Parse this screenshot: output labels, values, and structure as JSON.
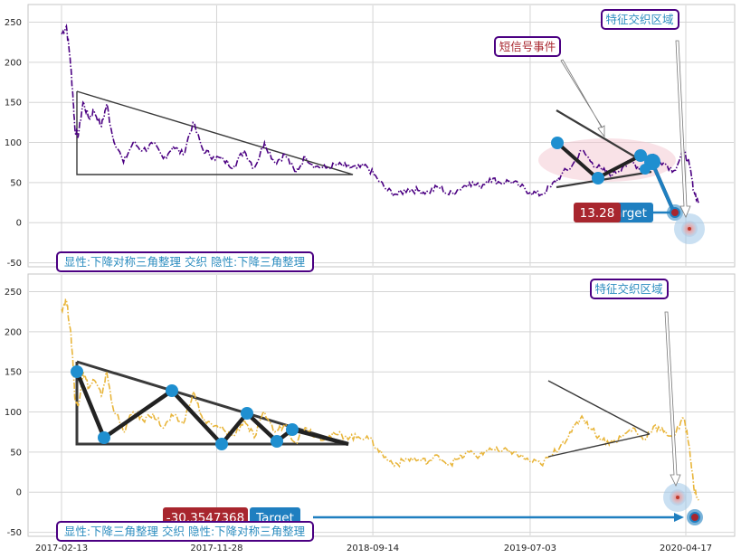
{
  "chart_data": [
    {
      "type": "line",
      "panel": "top",
      "series": [
        {
          "color": "#4b0082",
          "style": "dash-dot"
        }
      ],
      "x_ticks": [
        "2017-02-13",
        "2017-11-28",
        "2018-09-14",
        "2019-07-03",
        "2020-04-17"
      ],
      "y_ticks": [
        "-50",
        "0",
        "50",
        "100",
        "150",
        "200",
        "250"
      ],
      "ylim": [
        -55,
        272
      ],
      "grid": true,
      "points": [
        [
          "2017-02-13",
          235
        ],
        [
          "2017-02-22",
          245
        ],
        [
          "2017-03-01",
          205
        ],
        [
          "2017-03-06",
          160
        ],
        [
          "2017-03-10",
          115
        ],
        [
          "2017-03-16",
          108
        ],
        [
          "2017-03-25",
          150
        ],
        [
          "2017-04-05",
          130
        ],
        [
          "2017-04-14",
          140
        ],
        [
          "2017-04-28",
          120
        ],
        [
          "2017-05-08",
          148
        ],
        [
          "2017-05-18",
          110
        ],
        [
          "2017-06-08",
          75
        ],
        [
          "2017-06-26",
          100
        ],
        [
          "2017-07-14",
          90
        ],
        [
          "2017-08-02",
          98
        ],
        [
          "2017-08-21",
          80
        ],
        [
          "2017-09-08",
          95
        ],
        [
          "2017-09-27",
          85
        ],
        [
          "2017-10-15",
          125
        ],
        [
          "2017-11-03",
          90
        ],
        [
          "2017-11-22",
          82
        ],
        [
          "2017-12-11",
          78
        ],
        [
          "2017-12-30",
          70
        ],
        [
          "2018-01-18",
          90
        ],
        [
          "2018-02-06",
          68
        ],
        [
          "2018-02-25",
          100
        ],
        [
          "2018-03-16",
          75
        ],
        [
          "2018-04-04",
          85
        ],
        [
          "2018-04-23",
          62
        ],
        [
          "2018-05-12",
          82
        ],
        [
          "2018-05-31",
          70
        ],
        [
          "2018-06-19",
          68
        ],
        [
          "2018-07-08",
          72
        ],
        [
          "2018-07-27",
          70
        ],
        [
          "2018-08-15",
          68
        ],
        [
          "2018-09-03",
          70
        ],
        [
          "2018-09-22",
          55
        ],
        [
          "2018-10-11",
          40
        ],
        [
          "2018-10-30",
          35
        ],
        [
          "2018-11-18",
          42
        ],
        [
          "2018-12-07",
          40
        ],
        [
          "2018-12-26",
          38
        ],
        [
          "2019-01-14",
          45
        ],
        [
          "2019-02-02",
          35
        ],
        [
          "2019-02-21",
          42
        ],
        [
          "2019-03-12",
          50
        ],
        [
          "2019-03-31",
          45
        ],
        [
          "2019-04-19",
          55
        ],
        [
          "2019-05-08",
          50
        ],
        [
          "2019-05-27",
          52
        ],
        [
          "2019-06-15",
          45
        ],
        [
          "2019-07-04",
          38
        ],
        [
          "2019-07-23",
          35
        ],
        [
          "2019-08-11",
          45
        ],
        [
          "2019-08-30",
          60
        ],
        [
          "2019-09-18",
          70
        ],
        [
          "2019-10-07",
          90
        ],
        [
          "2019-10-26",
          75
        ],
        [
          "2019-11-14",
          65
        ],
        [
          "2019-12-03",
          60
        ],
        [
          "2019-12-22",
          70
        ],
        [
          "2020-01-10",
          75
        ],
        [
          "2020-01-29",
          65
        ],
        [
          "2020-02-17",
          85
        ],
        [
          "2020-03-07",
          75
        ],
        [
          "2020-03-26",
          65
        ],
        [
          "2020-04-14",
          90
        ],
        [
          "2020-04-24",
          70
        ],
        [
          "2020-05-02",
          40
        ],
        [
          "2020-05-11",
          25
        ]
      ],
      "legend_text": "显性:下降对称三角整理 交织 隐性:下降三角整理",
      "annotations": [
        {
          "id": "signal",
          "label": "短信号事件"
        },
        {
          "id": "feature",
          "label": "特征交织区域"
        }
      ],
      "target_badge": {
        "value": "13.28",
        "label": "Target",
        "y": 13.28
      }
    },
    {
      "type": "line",
      "panel": "bottom",
      "series": [
        {
          "color": "#e8b53a",
          "style": "dash-dot"
        }
      ],
      "x_ticks": [
        "2017-02-13",
        "2017-11-28",
        "2018-09-14",
        "2019-07-03",
        "2020-04-17"
      ],
      "y_ticks": [
        "-50",
        "0",
        "50",
        "100",
        "150",
        "200",
        "250"
      ],
      "ylim": [
        -55,
        272
      ],
      "grid": true,
      "points": [
        [
          "2017-02-13",
          228
        ],
        [
          "2017-02-22",
          240
        ],
        [
          "2017-03-01",
          205
        ],
        [
          "2017-03-06",
          165
        ],
        [
          "2017-03-10",
          115
        ],
        [
          "2017-03-16",
          108
        ],
        [
          "2017-03-25",
          150
        ],
        [
          "2017-04-05",
          130
        ],
        [
          "2017-04-14",
          140
        ],
        [
          "2017-04-28",
          120
        ],
        [
          "2017-05-08",
          150
        ],
        [
          "2017-05-18",
          110
        ],
        [
          "2017-06-08",
          75
        ],
        [
          "2017-06-26",
          100
        ],
        [
          "2017-07-14",
          90
        ],
        [
          "2017-08-02",
          98
        ],
        [
          "2017-08-21",
          80
        ],
        [
          "2017-09-08",
          95
        ],
        [
          "2017-09-27",
          85
        ],
        [
          "2017-10-15",
          125
        ],
        [
          "2017-11-03",
          90
        ],
        [
          "2017-11-22",
          82
        ],
        [
          "2017-12-11",
          78
        ],
        [
          "2017-12-30",
          70
        ],
        [
          "2018-01-18",
          90
        ],
        [
          "2018-02-06",
          68
        ],
        [
          "2018-02-25",
          100
        ],
        [
          "2018-03-16",
          75
        ],
        [
          "2018-04-04",
          85
        ],
        [
          "2018-04-23",
          62
        ],
        [
          "2018-05-12",
          82
        ],
        [
          "2018-05-31",
          70
        ],
        [
          "2018-06-19",
          68
        ],
        [
          "2018-07-08",
          72
        ],
        [
          "2018-07-27",
          70
        ],
        [
          "2018-08-15",
          68
        ],
        [
          "2018-09-03",
          70
        ],
        [
          "2018-09-22",
          55
        ],
        [
          "2018-10-11",
          40
        ],
        [
          "2018-10-30",
          35
        ],
        [
          "2018-11-18",
          42
        ],
        [
          "2018-12-07",
          40
        ],
        [
          "2018-12-26",
          38
        ],
        [
          "2019-01-14",
          45
        ],
        [
          "2019-02-02",
          35
        ],
        [
          "2019-02-21",
          42
        ],
        [
          "2019-03-12",
          50
        ],
        [
          "2019-03-31",
          45
        ],
        [
          "2019-04-19",
          55
        ],
        [
          "2019-05-08",
          50
        ],
        [
          "2019-05-27",
          52
        ],
        [
          "2019-06-15",
          45
        ],
        [
          "2019-07-04",
          38
        ],
        [
          "2019-07-23",
          35
        ],
        [
          "2019-08-11",
          45
        ],
        [
          "2019-08-30",
          60
        ],
        [
          "2019-09-18",
          75
        ],
        [
          "2019-10-07",
          95
        ],
        [
          "2019-10-26",
          78
        ],
        [
          "2019-11-14",
          65
        ],
        [
          "2019-12-03",
          62
        ],
        [
          "2019-12-22",
          70
        ],
        [
          "2020-01-10",
          80
        ],
        [
          "2020-01-29",
          65
        ],
        [
          "2020-02-17",
          82
        ],
        [
          "2020-03-07",
          75
        ],
        [
          "2020-03-26",
          70
        ],
        [
          "2020-04-14",
          92
        ],
        [
          "2020-04-24",
          55
        ],
        [
          "2020-05-02",
          5
        ],
        [
          "2020-05-11",
          -10
        ]
      ],
      "legend_text": "显性:下降三角整理 交织 隐性:下降对称三角整理",
      "annotations": [
        {
          "id": "feature",
          "label": "特征交织区域"
        }
      ],
      "target_badge": {
        "value": "-30.3547368",
        "label": "Target",
        "y": -30.3547368
      }
    }
  ],
  "colors": {
    "grid": "#d5d5d5",
    "frame": "#c6c6c6",
    "annotation_border": "#4b0082",
    "annotation_text": "#2b8cbf",
    "value_badge": "#a8262e",
    "target_badge": "#1f7fc0",
    "marker": "#1f8fd0",
    "pattern_line": "#2a2a2a"
  }
}
